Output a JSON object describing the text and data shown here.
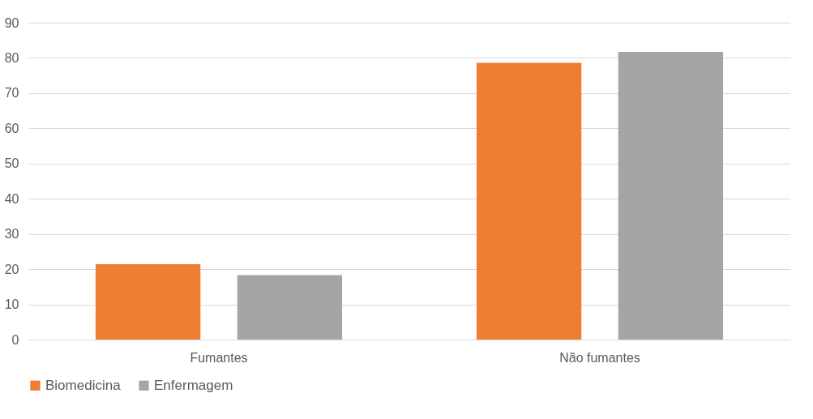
{
  "chart_data": {
    "type": "bar",
    "categories": [
      "Fumantes",
      "Não fumantes"
    ],
    "series": [
      {
        "name": "Biomedicina",
        "color": "#ed7d31",
        "values": [
          21.4,
          78.6
        ]
      },
      {
        "name": "Enfermagem",
        "color": "#a5a5a5",
        "values": [
          18.3,
          81.7
        ]
      }
    ],
    "ylim": [
      0,
      90
    ],
    "yticks": [
      0,
      10,
      20,
      30,
      40,
      50,
      60,
      70,
      80,
      90
    ],
    "grid": "y",
    "legend": "bottom"
  }
}
